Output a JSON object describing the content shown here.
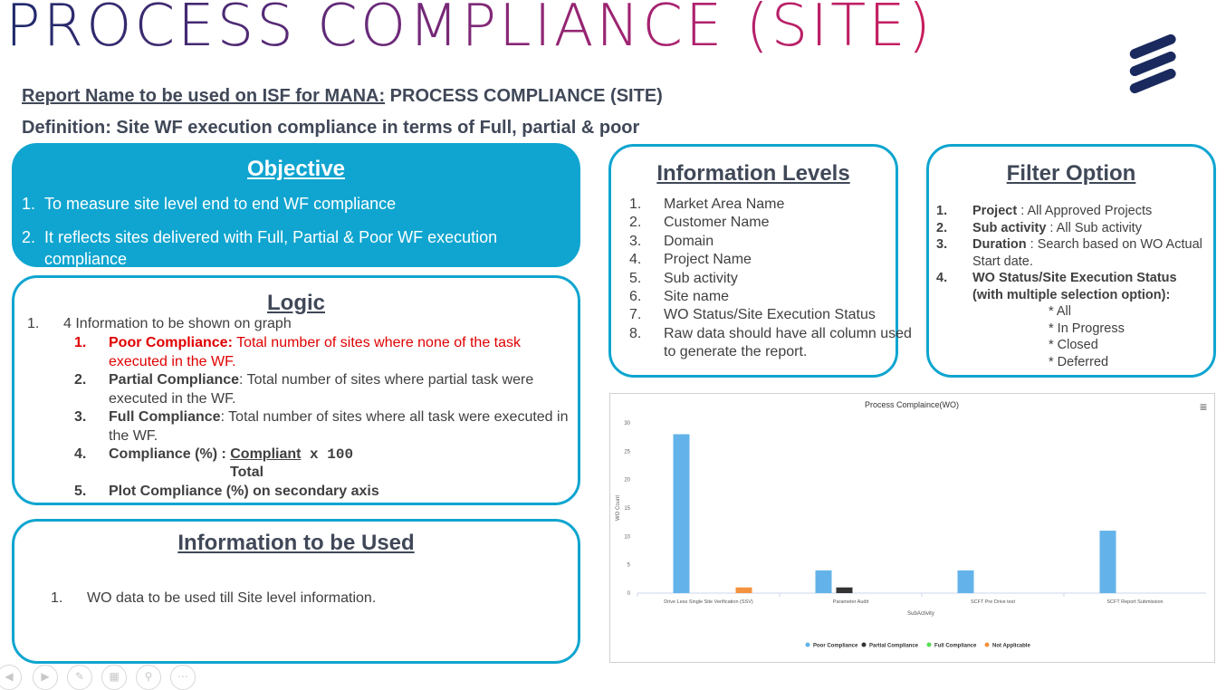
{
  "title": "PROCESS COMPLIANCE (SITE)",
  "report_name": {
    "label": "Report Name to be used on ISF for MANA:",
    "value": " PROCESS COMPLIANCE (SITE)"
  },
  "definition": "Definition: Site WF execution compliance in terms of Full, partial & poor",
  "objective": {
    "title": "Objective",
    "items": [
      {
        "num": "1.",
        "text": "To measure site level end to end WF compliance"
      },
      {
        "num": "2.",
        "text": "It reflects sites delivered with Full, Partial & Poor WF execution compliance"
      }
    ]
  },
  "logic": {
    "title": "Logic",
    "intro_num": "1.",
    "intro": "4 Information to be shown on graph",
    "items": [
      {
        "num": "1.",
        "term": "Poor Compliance:",
        "text": " Total number of sites where none of the task executed in the WF."
      },
      {
        "num": "2.",
        "term": "Partial Compliance",
        "text": ":  Total number of sites where partial task were executed in the WF."
      },
      {
        "num": "3.",
        "term": "Full Compliance",
        "text": ": Total number of sites where all task were executed in the WF."
      },
      {
        "num": "4.",
        "term": "Compliance (%) : ",
        "text": ""
      },
      {
        "num": "5.",
        "term": "Plot Compliance (%) on secondary axis",
        "text": ""
      }
    ],
    "formula_numerator": "Compliant",
    "formula_mult": " x 100",
    "formula_denominator": "Total"
  },
  "info_used": {
    "title": "Information to be Used",
    "items": [
      {
        "num": "1.",
        "text": "WO data to be used till Site level information."
      }
    ]
  },
  "info_levels": {
    "title": "Information Levels",
    "items": [
      {
        "num": "1.",
        "text": "Market Area Name"
      },
      {
        "num": "2.",
        "text": "Customer Name"
      },
      {
        "num": "3.",
        "text": "Domain"
      },
      {
        "num": "4.",
        "text": "Project Name"
      },
      {
        "num": "5.",
        "text": "Sub activity"
      },
      {
        "num": "6.",
        "text": "Site name"
      },
      {
        "num": "7.",
        "text": "WO Status/Site Execution Status"
      },
      {
        "num": "8.",
        "text": "Raw data should have all column used to generate the report."
      }
    ]
  },
  "filter": {
    "title": "Filter Option",
    "items": [
      {
        "num": "1.",
        "term": "Project",
        "text": " : All Approved Projects"
      },
      {
        "num": "2.",
        "term": "Sub activity",
        "text": " : All Sub activity"
      },
      {
        "num": "3.",
        "term": "Duration",
        "text": " : Search based on WO Actual Start date."
      },
      {
        "num": "4.",
        "term": "WO Status/Site Execution Status (with multiple selection option):",
        "text": ""
      }
    ],
    "options": [
      "* All",
      "* In Progress",
      "* Closed",
      "* Deferred"
    ]
  },
  "chart_data": {
    "type": "bar",
    "title": "Process Complaince(WO)",
    "xlabel": "SubActivity",
    "ylabel": "WO Count",
    "ylim": [
      0,
      30
    ],
    "yticks": [
      0,
      5,
      10,
      15,
      20,
      25,
      30
    ],
    "categories": [
      "Drive Less Single Site Verification (SSV)",
      "Parameter Audit",
      "SCFT Pre Drive test",
      "SCFT Report Submission"
    ],
    "series": [
      {
        "name": "Poor Compliance",
        "color": "#63b3ea",
        "values": [
          28,
          4,
          4,
          11
        ]
      },
      {
        "name": "Partial Compliance",
        "color": "#333333",
        "values": [
          0,
          1,
          0,
          0
        ]
      },
      {
        "name": "Full Compliance",
        "color": "#55dd55",
        "values": [
          0,
          0,
          0,
          0
        ]
      },
      {
        "name": "Not Applicable",
        "color": "#f5923e",
        "values": [
          1,
          0,
          0,
          0
        ]
      }
    ],
    "legend": "bottom",
    "grid": false,
    "menu_icon": "hamburger-menu-icon"
  },
  "footer_icons": [
    "prev-icon",
    "next-icon",
    "pen-icon",
    "slides-icon",
    "zoom-icon",
    "more-icon"
  ]
}
